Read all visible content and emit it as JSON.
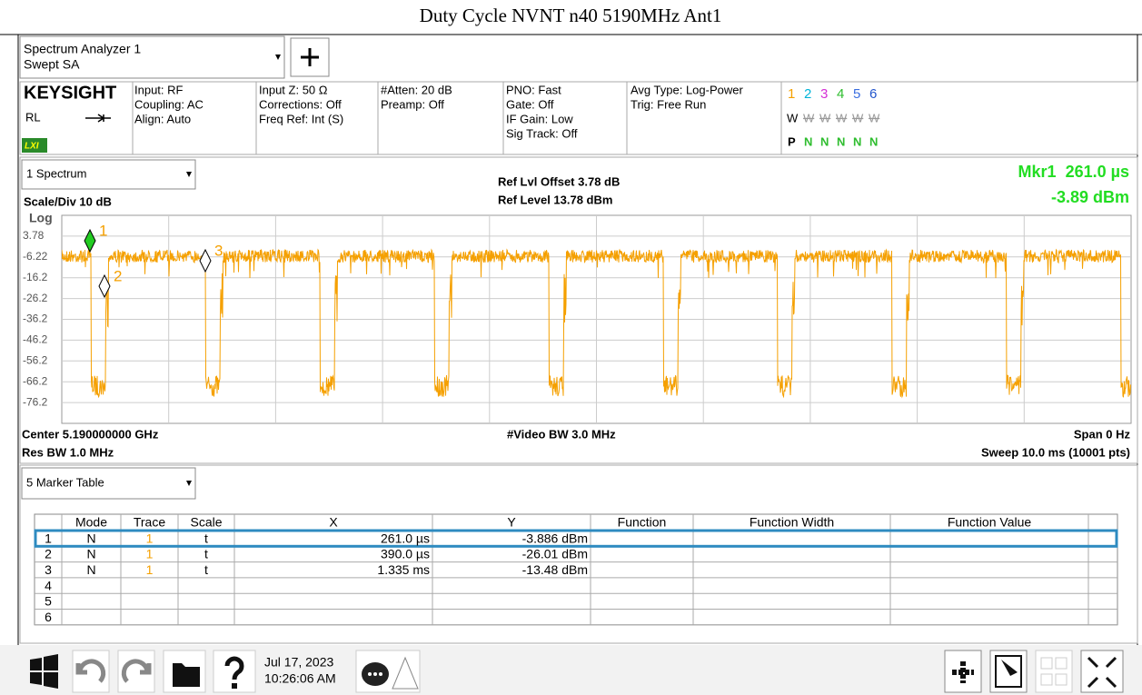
{
  "title": "Duty Cycle NVNT n40 5190MHz Ant1",
  "header": {
    "app_name": "Spectrum Analyzer 1",
    "mode": "Swept SA"
  },
  "status": {
    "brand": "KEYSIGHT",
    "rl": "RL",
    "lxi": "LXI",
    "columns": [
      [
        "Input: RF",
        "Coupling: AC",
        "Align: Auto"
      ],
      [
        "Input Z: 50 Ω",
        "Corrections: Off",
        "Freq Ref: Int (S)"
      ],
      [
        "#Atten: 20 dB",
        "Preamp: Off"
      ],
      [
        "PNO: Fast",
        "Gate: Off",
        "IF Gain: Low",
        "Sig Track: Off"
      ],
      [
        "Avg Type: Log-Power",
        "Trig: Free Run"
      ]
    ],
    "trace_numbers": [
      "1",
      "2",
      "3",
      "4",
      "5",
      "6"
    ],
    "trace_types": [
      "W",
      "W",
      "W",
      "W",
      "W",
      "W"
    ],
    "detectors": [
      "P",
      "N",
      "N",
      "N",
      "N",
      "N"
    ]
  },
  "spectrum": {
    "window": "1 Spectrum",
    "scale": "Scale/Div 10 dB",
    "scale_type": "Log",
    "ref_offset": "Ref Lvl Offset 3.78 dB",
    "ref_level": "Ref Level 13.78 dBm",
    "marker_x": "Mkr1  261.0 µs",
    "marker_y": "-3.89 dBm",
    "y_labels": [
      "3.78",
      "-6.22",
      "-16.2",
      "-26.2",
      "-36.2",
      "-46.2",
      "-56.2",
      "-66.2",
      "-76.2"
    ],
    "markers": [
      "1",
      "2",
      "3"
    ],
    "center": "Center 5.190000000 GHz",
    "video_bw": "#Video BW 3.0 MHz",
    "span": "Span 0 Hz",
    "res_bw": "Res BW 1.0 MHz",
    "sweep": "Sweep 10.0 ms (10001 pts)"
  },
  "marker_table": {
    "window": "5 Marker Table",
    "headers": [
      "Mode",
      "Trace",
      "Scale",
      "X",
      "Y",
      "Function",
      "Function Width",
      "Function Value"
    ],
    "rows": [
      [
        "1",
        "N",
        "1",
        "t",
        "261.0 µs",
        "-3.886 dBm"
      ],
      [
        "2",
        "N",
        "1",
        "t",
        "390.0 µs",
        "-26.01 dBm"
      ],
      [
        "3",
        "N",
        "1",
        "t",
        "1.335 ms",
        "-13.48 dBm"
      ],
      [
        "4"
      ],
      [
        "5"
      ],
      [
        "6"
      ]
    ]
  },
  "taskbar": {
    "date": "Jul 17, 2023",
    "time": "10:26:06 AM"
  }
}
